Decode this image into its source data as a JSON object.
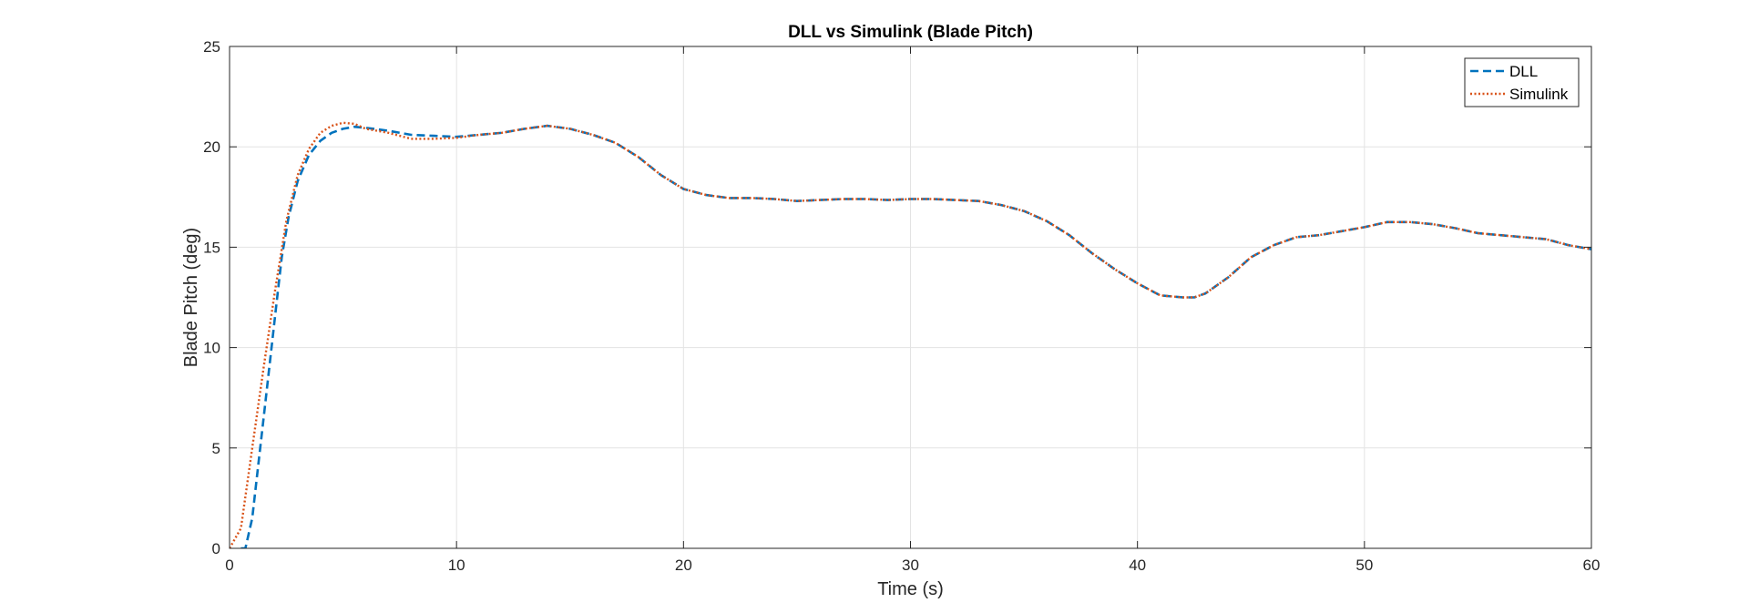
{
  "chart_data": {
    "type": "line",
    "title": "DLL vs Simulink (Blade Pitch)",
    "xlabel": "Time (s)",
    "ylabel": "Blade Pitch (deg)",
    "xlim": [
      0,
      60
    ],
    "ylim": [
      0,
      25
    ],
    "xticks": [
      0,
      10,
      20,
      30,
      40,
      50,
      60
    ],
    "yticks": [
      0,
      5,
      10,
      15,
      20,
      25
    ],
    "grid": true,
    "legend_position": "top-right",
    "series": [
      {
        "name": "DLL",
        "color": "#0072BD",
        "style": "dashed",
        "x": [
          0.5,
          0.7,
          1.0,
          1.3,
          1.6,
          2.0,
          2.3,
          2.6,
          3.0,
          3.5,
          4.0,
          4.5,
          5.0,
          5.5,
          6.0,
          7.0,
          8.0,
          9.0,
          10.0,
          11.0,
          12.0,
          13.0,
          14.0,
          15.0,
          16.0,
          17.0,
          18.0,
          19.0,
          20.0,
          21.0,
          22.0,
          23.0,
          24.0,
          25.0,
          26.0,
          27.0,
          28.0,
          29.0,
          30.0,
          31.0,
          32.0,
          33.0,
          34.0,
          35.0,
          36.0,
          37.0,
          38.0,
          39.0,
          40.0,
          41.0,
          42.0,
          42.5,
          43.0,
          44.0,
          45.0,
          46.0,
          47.0,
          48.0,
          49.0,
          50.0,
          51.0,
          52.0,
          53.0,
          54.0,
          55.0,
          56.0,
          57.0,
          58.0,
          59.0,
          60.0
        ],
        "y": [
          0,
          0,
          1.5,
          4.5,
          7.5,
          11.5,
          14.5,
          16.5,
          18.3,
          19.6,
          20.3,
          20.7,
          20.9,
          21.0,
          20.95,
          20.8,
          20.6,
          20.55,
          20.5,
          20.6,
          20.7,
          20.9,
          21.05,
          20.9,
          20.6,
          20.2,
          19.5,
          18.6,
          17.9,
          17.6,
          17.45,
          17.45,
          17.4,
          17.3,
          17.35,
          17.4,
          17.4,
          17.35,
          17.4,
          17.4,
          17.35,
          17.3,
          17.1,
          16.8,
          16.3,
          15.6,
          14.7,
          13.9,
          13.2,
          12.6,
          12.5,
          12.5,
          12.7,
          13.5,
          14.5,
          15.1,
          15.5,
          15.6,
          15.8,
          16.0,
          16.25,
          16.25,
          16.15,
          15.95,
          15.7,
          15.6,
          15.5,
          15.4,
          15.1,
          14.9
        ]
      },
      {
        "name": "Simulink",
        "color": "#D95319",
        "style": "dotted",
        "x": [
          0,
          0.5,
          1.0,
          1.5,
          2.0,
          2.5,
          3.0,
          3.5,
          4.0,
          4.5,
          5.0,
          5.5,
          6.0,
          7.0,
          8.0,
          9.0,
          10.0,
          11.0,
          12.0,
          13.0,
          14.0,
          15.0,
          16.0,
          17.0,
          18.0,
          19.0,
          20.0,
          21.0,
          22.0,
          23.0,
          24.0,
          25.0,
          26.0,
          27.0,
          28.0,
          29.0,
          30.0,
          31.0,
          32.0,
          33.0,
          34.0,
          35.0,
          36.0,
          37.0,
          38.0,
          39.0,
          40.0,
          41.0,
          42.0,
          42.5,
          43.0,
          44.0,
          45.0,
          46.0,
          47.0,
          48.0,
          49.0,
          50.0,
          51.0,
          52.0,
          53.0,
          54.0,
          55.0,
          56.0,
          57.0,
          58.0,
          59.0,
          60.0
        ],
        "y": [
          0,
          1.0,
          5.0,
          9.0,
          12.8,
          16.3,
          18.6,
          19.9,
          20.7,
          21.05,
          21.2,
          21.15,
          20.9,
          20.7,
          20.4,
          20.4,
          20.45,
          20.6,
          20.7,
          20.9,
          21.05,
          20.9,
          20.6,
          20.2,
          19.5,
          18.6,
          17.9,
          17.6,
          17.45,
          17.45,
          17.4,
          17.3,
          17.35,
          17.4,
          17.4,
          17.35,
          17.4,
          17.4,
          17.35,
          17.3,
          17.1,
          16.8,
          16.3,
          15.6,
          14.7,
          13.9,
          13.2,
          12.6,
          12.5,
          12.5,
          12.7,
          13.5,
          14.5,
          15.1,
          15.5,
          15.6,
          15.8,
          16.0,
          16.25,
          16.25,
          16.15,
          15.95,
          15.7,
          15.6,
          15.5,
          15.4,
          15.1,
          14.9
        ]
      }
    ]
  }
}
